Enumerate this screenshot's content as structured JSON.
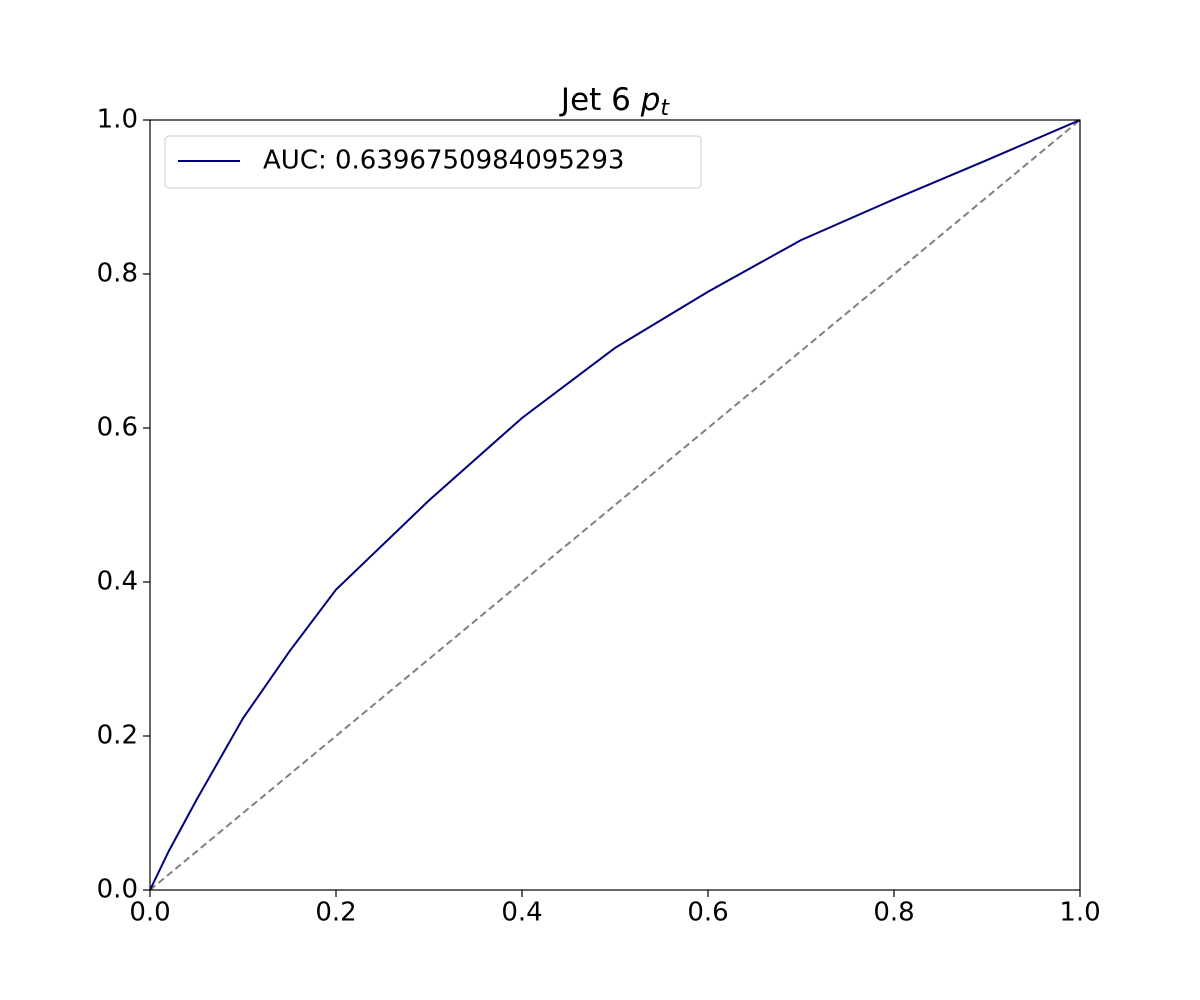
{
  "chart_data": {
    "type": "line",
    "title": {
      "text": "Jet 6",
      "symbol": "p",
      "subscript": "t"
    },
    "x": [
      0,
      0.02,
      0.05,
      0.1,
      0.15,
      0.2,
      0.3,
      0.4,
      0.5,
      0.6,
      0.7,
      0.8,
      0.9,
      1.0
    ],
    "series": [
      {
        "name": "AUC: 0.6396750984095293",
        "color": "#00007f",
        "values": [
          0,
          0.05,
          0.117,
          0.223,
          0.31,
          0.39,
          0.506,
          0.613,
          0.704,
          0.777,
          0.844,
          0.897,
          0.948,
          1.0
        ]
      }
    ],
    "xlim": [
      0,
      1
    ],
    "ylim": [
      0,
      1
    ],
    "xticks": [
      {
        "value": 0,
        "label": "0.0"
      },
      0.2,
      0.4,
      0.6,
      0.8,
      {
        "value": 1,
        "label": "1.0"
      }
    ],
    "yticks": [
      {
        "value": 0,
        "label": "0.0"
      },
      0.2,
      0.4,
      0.6,
      0.8,
      {
        "value": 1,
        "label": "1.0"
      }
    ],
    "legend": "upper left",
    "diagonal_color": "#808080"
  }
}
